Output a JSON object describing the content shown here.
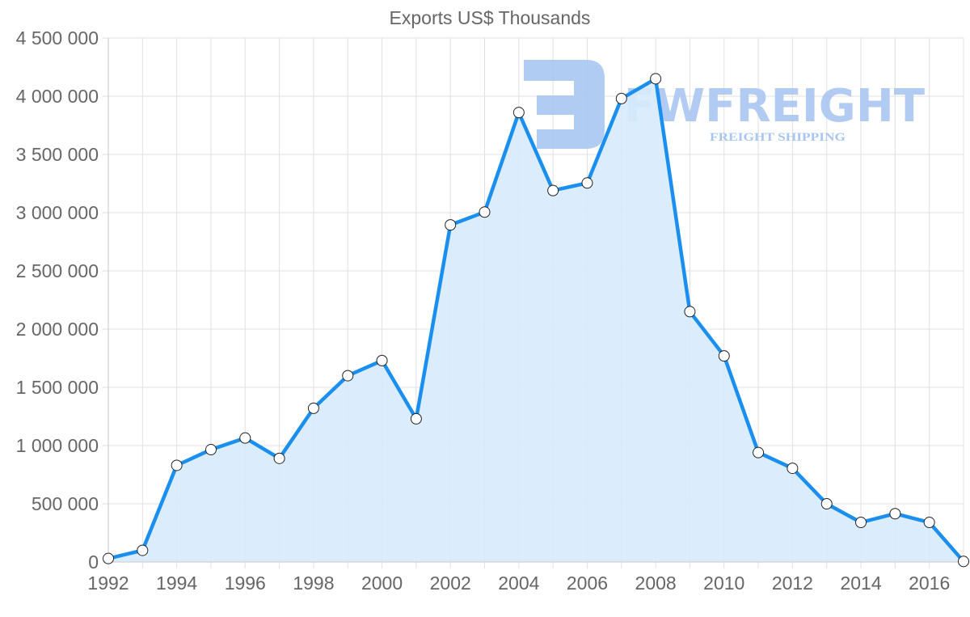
{
  "chart_data": {
    "type": "area",
    "title": "Exports US$ Thousands",
    "xlabel": "",
    "ylabel": "",
    "ylim": [
      0,
      4500000
    ],
    "yticks": [
      "0",
      "500 000",
      "1 000 000",
      "1 500 000",
      "2 000 000",
      "2 500 000",
      "3 000 000",
      "3 500 000",
      "4 000 000",
      "4 500 000"
    ],
    "xticks": [
      "1992",
      "1994",
      "1996",
      "1998",
      "2000",
      "2002",
      "2004",
      "2006",
      "2008",
      "2010",
      "2012",
      "2014",
      "2016"
    ],
    "grid": true,
    "legend": null,
    "x": [
      1992,
      1993,
      1994,
      1995,
      1996,
      1997,
      1998,
      1999,
      2000,
      2001,
      2002,
      2003,
      2004,
      2005,
      2006,
      2007,
      2008,
      2009,
      2010,
      2011,
      2012,
      2013,
      2014,
      2015,
      2016,
      2017
    ],
    "series": [
      {
        "name": "Exports US$ Thousands",
        "color": "#1a8fef",
        "fill": "#d7ebfc",
        "values": [
          30000,
          100000,
          830000,
          965000,
          1065000,
          890000,
          1320000,
          1600000,
          1730000,
          1230000,
          2895000,
          3005000,
          3860000,
          3190000,
          3255000,
          3980000,
          4150000,
          2150000,
          1770000,
          940000,
          805000,
          500000,
          340000,
          415000,
          340000,
          5000
        ]
      }
    ]
  },
  "watermark": {
    "brand": "FWFREIGHT",
    "tagline": "FREIGHT SHIPPING",
    "color": "#a9c6f2"
  }
}
